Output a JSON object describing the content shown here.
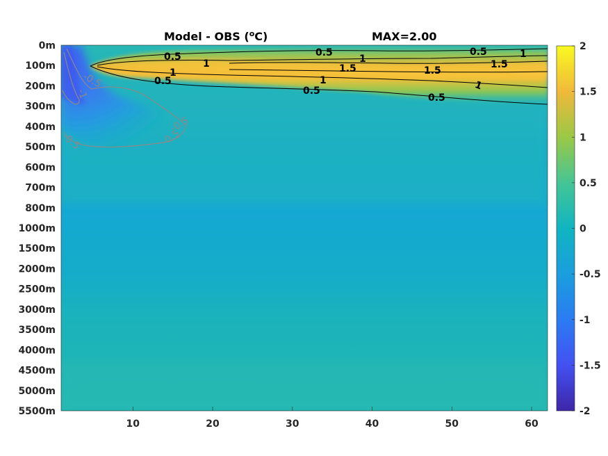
{
  "chart_data": {
    "type": "heatmap",
    "title": "Model - OBS (",
    "title_unit_sup": "o",
    "title_unit_tail": "C)",
    "max_label": "MAX=2.00",
    "x_ticks": [
      10,
      20,
      30,
      40,
      50,
      60
    ],
    "x_range": [
      1,
      62
    ],
    "y_tick_labels": [
      "0m",
      "100m",
      "200m",
      "300m",
      "400m",
      "500m",
      "600m",
      "700m",
      "800m",
      "1000m",
      "1500m",
      "2000m",
      "2500m",
      "3000m",
      "3500m",
      "4000m",
      "4500m",
      "5000m",
      "5500m"
    ],
    "colorbar": {
      "range": [
        -2,
        2
      ],
      "ticks": [
        "2",
        "1.5",
        "1",
        "0.5",
        "0",
        "-0.5",
        "-1",
        "-1.5",
        "-2"
      ],
      "colormap": "parula"
    },
    "grid": false,
    "contour_levels": [
      -1,
      -0.5,
      0.5,
      1,
      1.5
    ],
    "contour_labels": [
      {
        "text": "0.5",
        "level": 0.5,
        "x": 15,
        "depth": "50m"
      },
      {
        "text": "1",
        "level": 1,
        "x": 19,
        "depth": "80m"
      },
      {
        "text": "1",
        "level": 1,
        "x": 15,
        "depth": "120m"
      },
      {
        "text": "0.5",
        "level": 0.5,
        "x": 14,
        "depth": "170m"
      },
      {
        "text": "0.5",
        "level": 0.5,
        "x": 34,
        "depth": "30m"
      },
      {
        "text": "1",
        "level": 1,
        "x": 40,
        "depth": "60m"
      },
      {
        "text": "1.5",
        "level": 1.5,
        "x": 38,
        "depth": "100m"
      },
      {
        "text": "1",
        "level": 1,
        "x": 34,
        "depth": "160m"
      },
      {
        "text": "0.5",
        "level": 0.5,
        "x": 33,
        "depth": "210m"
      },
      {
        "text": "0.5",
        "level": 0.5,
        "x": 54,
        "depth": "30m"
      },
      {
        "text": "1",
        "level": 1,
        "x": 60,
        "depth": "40m"
      },
      {
        "text": "1.5",
        "level": 1.5,
        "x": 57,
        "depth": "90m"
      },
      {
        "text": "1.5",
        "level": 1.5,
        "x": 48,
        "depth": "110m"
      },
      {
        "text": "1",
        "level": 1,
        "x": 57,
        "depth": "190m"
      },
      {
        "text": "0.5",
        "level": 0.5,
        "x": 51,
        "depth": "250m"
      },
      {
        "text": "-0.5",
        "level": -0.5,
        "x": 5,
        "depth": "170m"
      },
      {
        "text": "-1",
        "level": -1,
        "x": 4,
        "depth": "250m"
      },
      {
        "text": "-0.5",
        "level": -0.5,
        "x": 3,
        "depth": "480m"
      },
      {
        "text": "-0.5",
        "level": -0.5,
        "x": 15,
        "depth": "440m"
      },
      {
        "text": "-0.5",
        "level": -0.5,
        "x": 16,
        "depth": "390m"
      }
    ],
    "field_summary": {
      "surface_warm_band": {
        "depth_range": [
          "0m",
          "300m"
        ],
        "peak_value": 2.0,
        "x_range": [
          5,
          62
        ]
      },
      "cold_pocket": {
        "depth_range": [
          "0m",
          "500m"
        ],
        "min_value": -1.1,
        "x_range": [
          1,
          16
        ]
      },
      "interior_value": -0.3,
      "deep_value": 0.0
    }
  }
}
